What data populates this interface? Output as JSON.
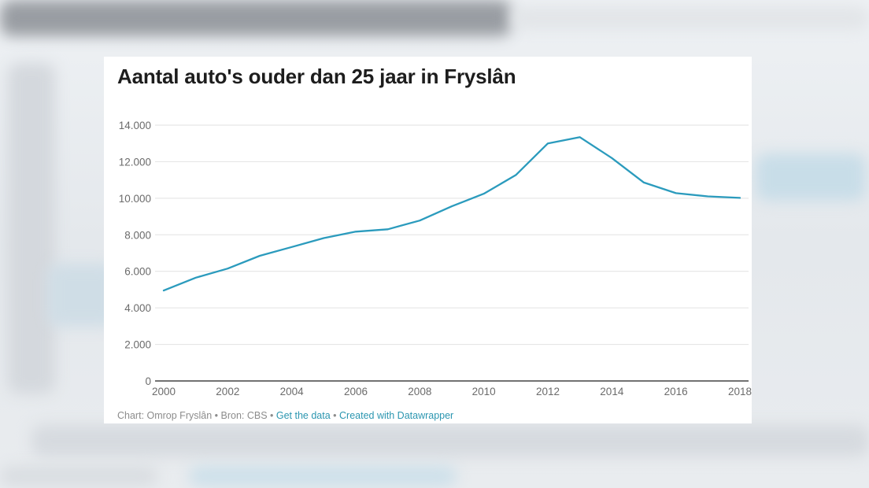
{
  "chart_data": {
    "type": "line",
    "title": "Aantal auto's ouder dan 25 jaar in Fryslân",
    "xlabel": "",
    "ylabel": "",
    "x": [
      2000,
      2001,
      2002,
      2003,
      2004,
      2005,
      2006,
      2007,
      2008,
      2009,
      2010,
      2011,
      2012,
      2013,
      2014,
      2015,
      2016,
      2017,
      2018
    ],
    "series": [
      {
        "color": "#2b9bbd",
        "values": [
          4950,
          5650,
          6150,
          6850,
          7330,
          7820,
          8170,
          8300,
          8780,
          9560,
          10250,
          11270,
          13000,
          13340,
          12200,
          10860,
          10280,
          10100,
          10020
        ]
      }
    ],
    "ylim": [
      0,
      14000
    ],
    "xlim": [
      2000,
      2018
    ],
    "yticks": [
      0,
      2000,
      4000,
      6000,
      8000,
      10000,
      12000,
      14000
    ],
    "ytick_labels": [
      "0",
      "2.000",
      "4.000",
      "6.000",
      "8.000",
      "10.000",
      "12.000",
      "14.000"
    ],
    "xticks": [
      2000,
      2002,
      2004,
      2006,
      2008,
      2010,
      2012,
      2014,
      2016,
      2018
    ],
    "xtick_labels": [
      "2000",
      "2002",
      "2004",
      "2006",
      "2008",
      "2010",
      "2012",
      "2014",
      "2016",
      "2018"
    ],
    "grid": true
  },
  "footer": {
    "source_text": "Chart: Omrop Fryslân • Bron: CBS • ",
    "get_data_label": "Get the data",
    "separator": " • ",
    "created_with_label": "Created with Datawrapper"
  },
  "colors": {
    "line": "#2b9bbd",
    "link": "#2b96b0",
    "grid": "#e2e2e2",
    "axis": "#1d1d1d"
  }
}
